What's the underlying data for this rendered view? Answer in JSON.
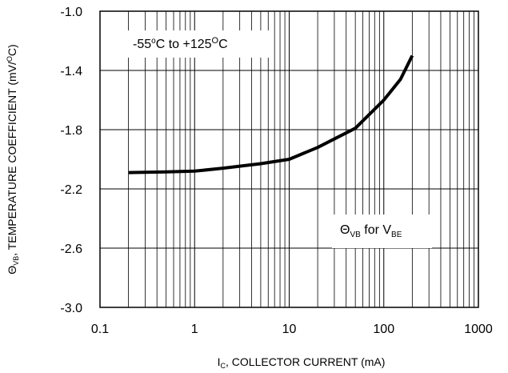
{
  "chart_data": {
    "type": "line",
    "xscale": "log",
    "xlim": [
      0.1,
      1000
    ],
    "ylim": [
      -3.0,
      -1.0
    ],
    "grid": true,
    "xticks": [
      {
        "value": 0.1,
        "label": "0.1"
      },
      {
        "value": 1,
        "label": "1"
      },
      {
        "value": 10,
        "label": "10"
      },
      {
        "value": 100,
        "label": "100"
      },
      {
        "value": 1000,
        "label": "1000"
      }
    ],
    "yticks": [
      {
        "value": -1.0,
        "label": "-1.0"
      },
      {
        "value": -1.4,
        "label": "-1.4"
      },
      {
        "value": -1.8,
        "label": "-1.8"
      },
      {
        "value": -2.2,
        "label": "-2.2"
      },
      {
        "value": -2.6,
        "label": "-2.6"
      },
      {
        "value": -3.0,
        "label": "-3.0"
      }
    ],
    "xlabel": {
      "main": "I",
      "sub": "C",
      "rest": ", COLLECTOR CURRENT (mA)"
    },
    "ylabel": {
      "main": "Θ",
      "sub": "VB",
      "rest": ", TEMPERATURE COEFFICIENT (mV/",
      "sup": "O",
      "end": "C)"
    },
    "annotations": {
      "temp_range": {
        "part1": "-55",
        "sup1": "o",
        "part2": "C to +125",
        "sup2": "O",
        "part3": "C"
      },
      "series_label": {
        "main": "Θ",
        "sub1": "VB",
        "mid": " for V",
        "sub2": "BE"
      }
    },
    "series": [
      {
        "x": [
          0.2,
          0.5,
          1,
          2,
          5,
          10,
          20,
          50,
          100,
          150,
          200
        ],
        "y": [
          -2.09,
          -2.085,
          -2.08,
          -2.06,
          -2.03,
          -2.0,
          -1.92,
          -1.79,
          -1.6,
          -1.46,
          -1.3
        ]
      }
    ]
  }
}
